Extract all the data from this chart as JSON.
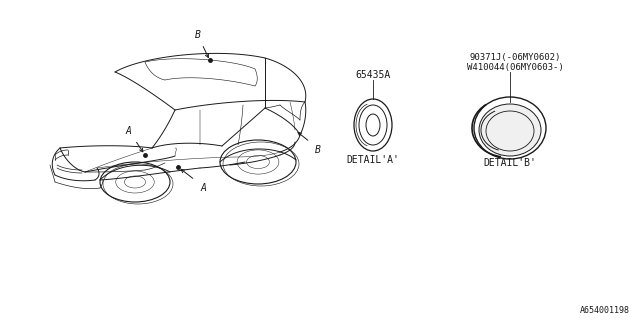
{
  "bg_color": "#ffffff",
  "line_color": "#1a1a1a",
  "text_color": "#1a1a1a",
  "part_label_a": "65435A",
  "part_label_b": "90371J(-06MY0602)\nW410044(06MY0603-)",
  "detail_a_label": "DETAIL'A'",
  "detail_b_label": "DETAIL'B'",
  "diagram_label": "A654001198",
  "label_a": "A",
  "label_b": "B",
  "figsize": [
    6.4,
    3.2
  ],
  "dpi": 100
}
